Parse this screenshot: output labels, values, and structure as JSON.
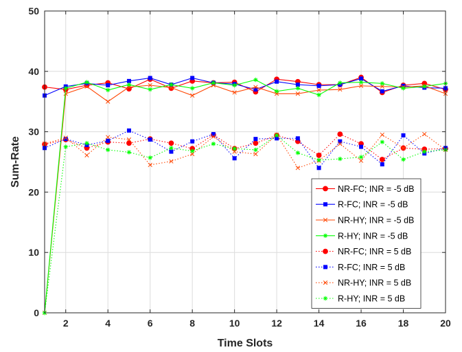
{
  "chart_data": {
    "type": "line",
    "title": "",
    "xlabel": "Time Slots",
    "ylabel": "Sum-Rate",
    "xlim": [
      1,
      20
    ],
    "ylim": [
      0,
      50
    ],
    "xticks": [
      2,
      4,
      6,
      8,
      10,
      12,
      14,
      16,
      18,
      20
    ],
    "yticks": [
      0,
      10,
      20,
      30,
      40,
      50
    ],
    "grid": true,
    "legend_position": "bottom-right",
    "x": [
      1,
      2,
      3,
      4,
      5,
      6,
      7,
      8,
      9,
      10,
      11,
      12,
      13,
      14,
      15,
      16,
      17,
      18,
      19,
      20
    ],
    "series": [
      {
        "name": "NR-FC; INR = -5 dB",
        "color": "#ff0000",
        "marker": "circle",
        "line": "solid",
        "values": [
          37.4,
          37.0,
          37.7,
          38.1,
          37.1,
          38.7,
          37.2,
          38.4,
          38.1,
          38.2,
          36.6,
          38.7,
          38.3,
          37.8,
          37.8,
          39.0,
          36.5,
          37.7,
          38.0,
          37.0
        ]
      },
      {
        "name": "R-FC; INR = -5 dB",
        "color": "#0000ff",
        "marker": "square",
        "line": "solid",
        "values": [
          36.0,
          37.5,
          38.0,
          37.7,
          38.4,
          38.9,
          37.8,
          38.9,
          38.1,
          37.9,
          37.0,
          38.3,
          37.8,
          37.6,
          37.8,
          38.8,
          36.7,
          37.6,
          37.3,
          37.2
        ]
      },
      {
        "name": "NR-HY; INR = -5 dB",
        "color": "#ff4500",
        "marker": "x",
        "line": "solid",
        "values": [
          0,
          36.3,
          37.5,
          35.0,
          37.4,
          37.7,
          37.3,
          36.0,
          37.7,
          36.5,
          37.4,
          36.3,
          36.3,
          36.9,
          37.0,
          37.6,
          37.5,
          37.4,
          37.6,
          36.3
        ]
      },
      {
        "name": "R-HY; INR = -5 dB",
        "color": "#00ff00",
        "marker": "star",
        "line": "solid",
        "values": [
          0,
          37.2,
          38.2,
          36.9,
          37.8,
          37.0,
          37.8,
          37.2,
          38.1,
          37.7,
          38.6,
          36.7,
          37.2,
          36.1,
          38.1,
          38.2,
          38.0,
          37.2,
          37.5,
          38.0
        ]
      },
      {
        "name": "NR-FC; INR = 5 dB",
        "color": "#ff0000",
        "marker": "circle",
        "line": "dotted",
        "values": [
          27.9,
          28.7,
          27.3,
          28.3,
          28.1,
          28.8,
          28.1,
          27.2,
          29.5,
          27.2,
          28.1,
          29.4,
          28.4,
          26.1,
          29.6,
          28.0,
          25.4,
          27.3,
          27.1,
          27.2
        ]
      },
      {
        "name": "R-FC; INR = 5 dB",
        "color": "#0000ff",
        "marker": "square",
        "line": "dotted",
        "values": [
          27.3,
          28.8,
          27.8,
          28.5,
          30.2,
          28.7,
          26.7,
          28.4,
          29.6,
          25.6,
          28.8,
          28.9,
          28.9,
          24.0,
          28.4,
          27.5,
          24.6,
          29.4,
          26.4,
          27.3
        ]
      },
      {
        "name": "NR-HY; INR = 5 dB",
        "color": "#ff4500",
        "marker": "x",
        "line": "dotted",
        "values": [
          28.0,
          29.0,
          26.1,
          29.1,
          28.7,
          24.5,
          25.1,
          26.3,
          29.2,
          26.7,
          26.3,
          29.5,
          24.0,
          25.2,
          28.0,
          25.2,
          29.5,
          27.3,
          29.6,
          27.0
        ]
      },
      {
        "name": "R-HY; INR = 5 dB",
        "color": "#00ff00",
        "marker": "star",
        "line": "dotted",
        "values": [
          0,
          27.5,
          28.1,
          27.0,
          26.6,
          25.7,
          27.3,
          26.8,
          28.0,
          27.2,
          27.0,
          29.4,
          26.5,
          25.3,
          25.5,
          25.8,
          28.3,
          25.4,
          26.7,
          27.0
        ]
      }
    ]
  }
}
